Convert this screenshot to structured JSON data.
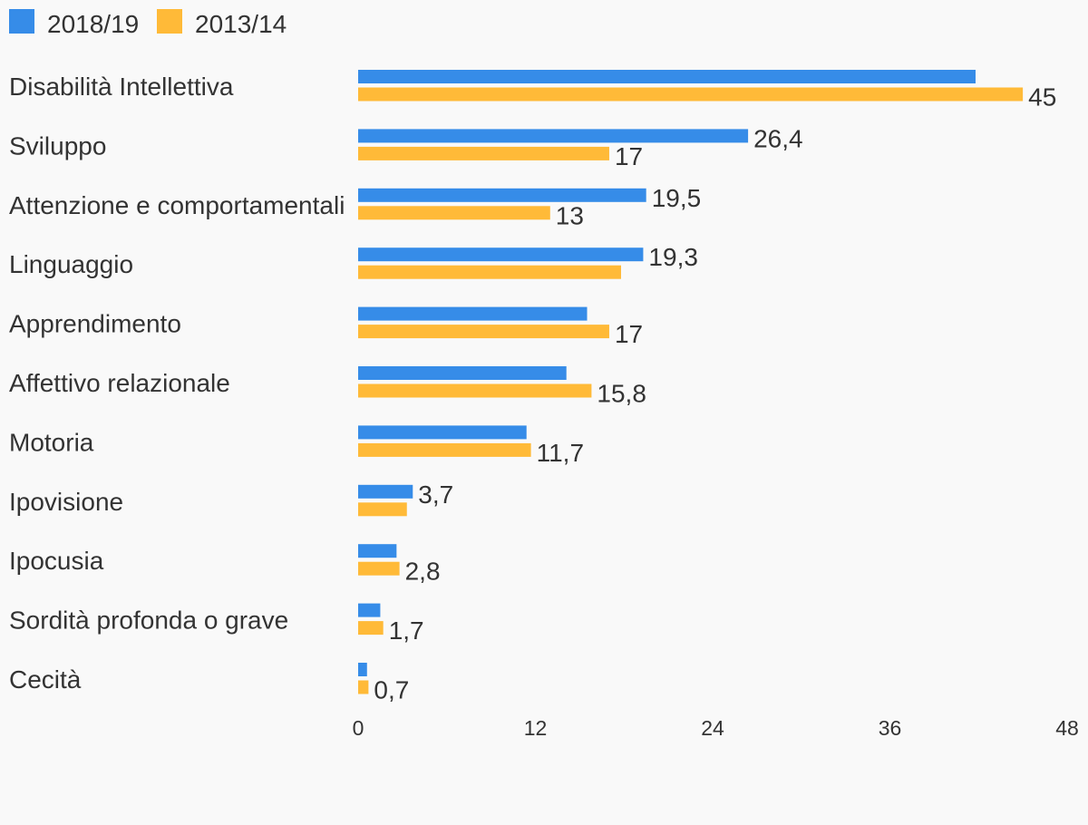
{
  "chart_data": {
    "type": "bar",
    "orientation": "horizontal",
    "title": "",
    "xlabel": "",
    "ylabel": "",
    "xlim": [
      0,
      48
    ],
    "ticks": [
      0,
      12,
      24,
      36,
      48
    ],
    "tick_labels": [
      "0",
      "12",
      "24",
      "36",
      "48"
    ],
    "grid": false,
    "legend_position": "top-left",
    "categories": [
      "Disabilità Intellettiva",
      "Sviluppo",
      "Attenzione e comportamentali",
      "Linguaggio",
      "Apprendimento",
      "Affettivo relazionale",
      "Motoria",
      "Ipovisione",
      "Ipocusia",
      "Sordità profonda o grave",
      "Cecità"
    ],
    "series": [
      {
        "name": "2018/19",
        "color": "#368ce8",
        "values": [
          41.8,
          26.4,
          19.5,
          19.3,
          15.5,
          14.1,
          11.4,
          3.7,
          2.6,
          1.5,
          0.6
        ],
        "labels": [
          "",
          "26,4",
          "19,5",
          "19,3",
          "",
          "",
          "",
          "3,7",
          "",
          "",
          ""
        ]
      },
      {
        "name": "2013/14",
        "color": "#ffba38",
        "values": [
          45,
          17,
          13,
          17.8,
          17,
          15.8,
          11.7,
          3.3,
          2.8,
          1.7,
          0.7
        ],
        "labels": [
          "45",
          "17",
          "13",
          "",
          "17",
          "15,8",
          "11,7",
          "",
          "2,8",
          "1,7",
          "0,7"
        ]
      }
    ]
  }
}
